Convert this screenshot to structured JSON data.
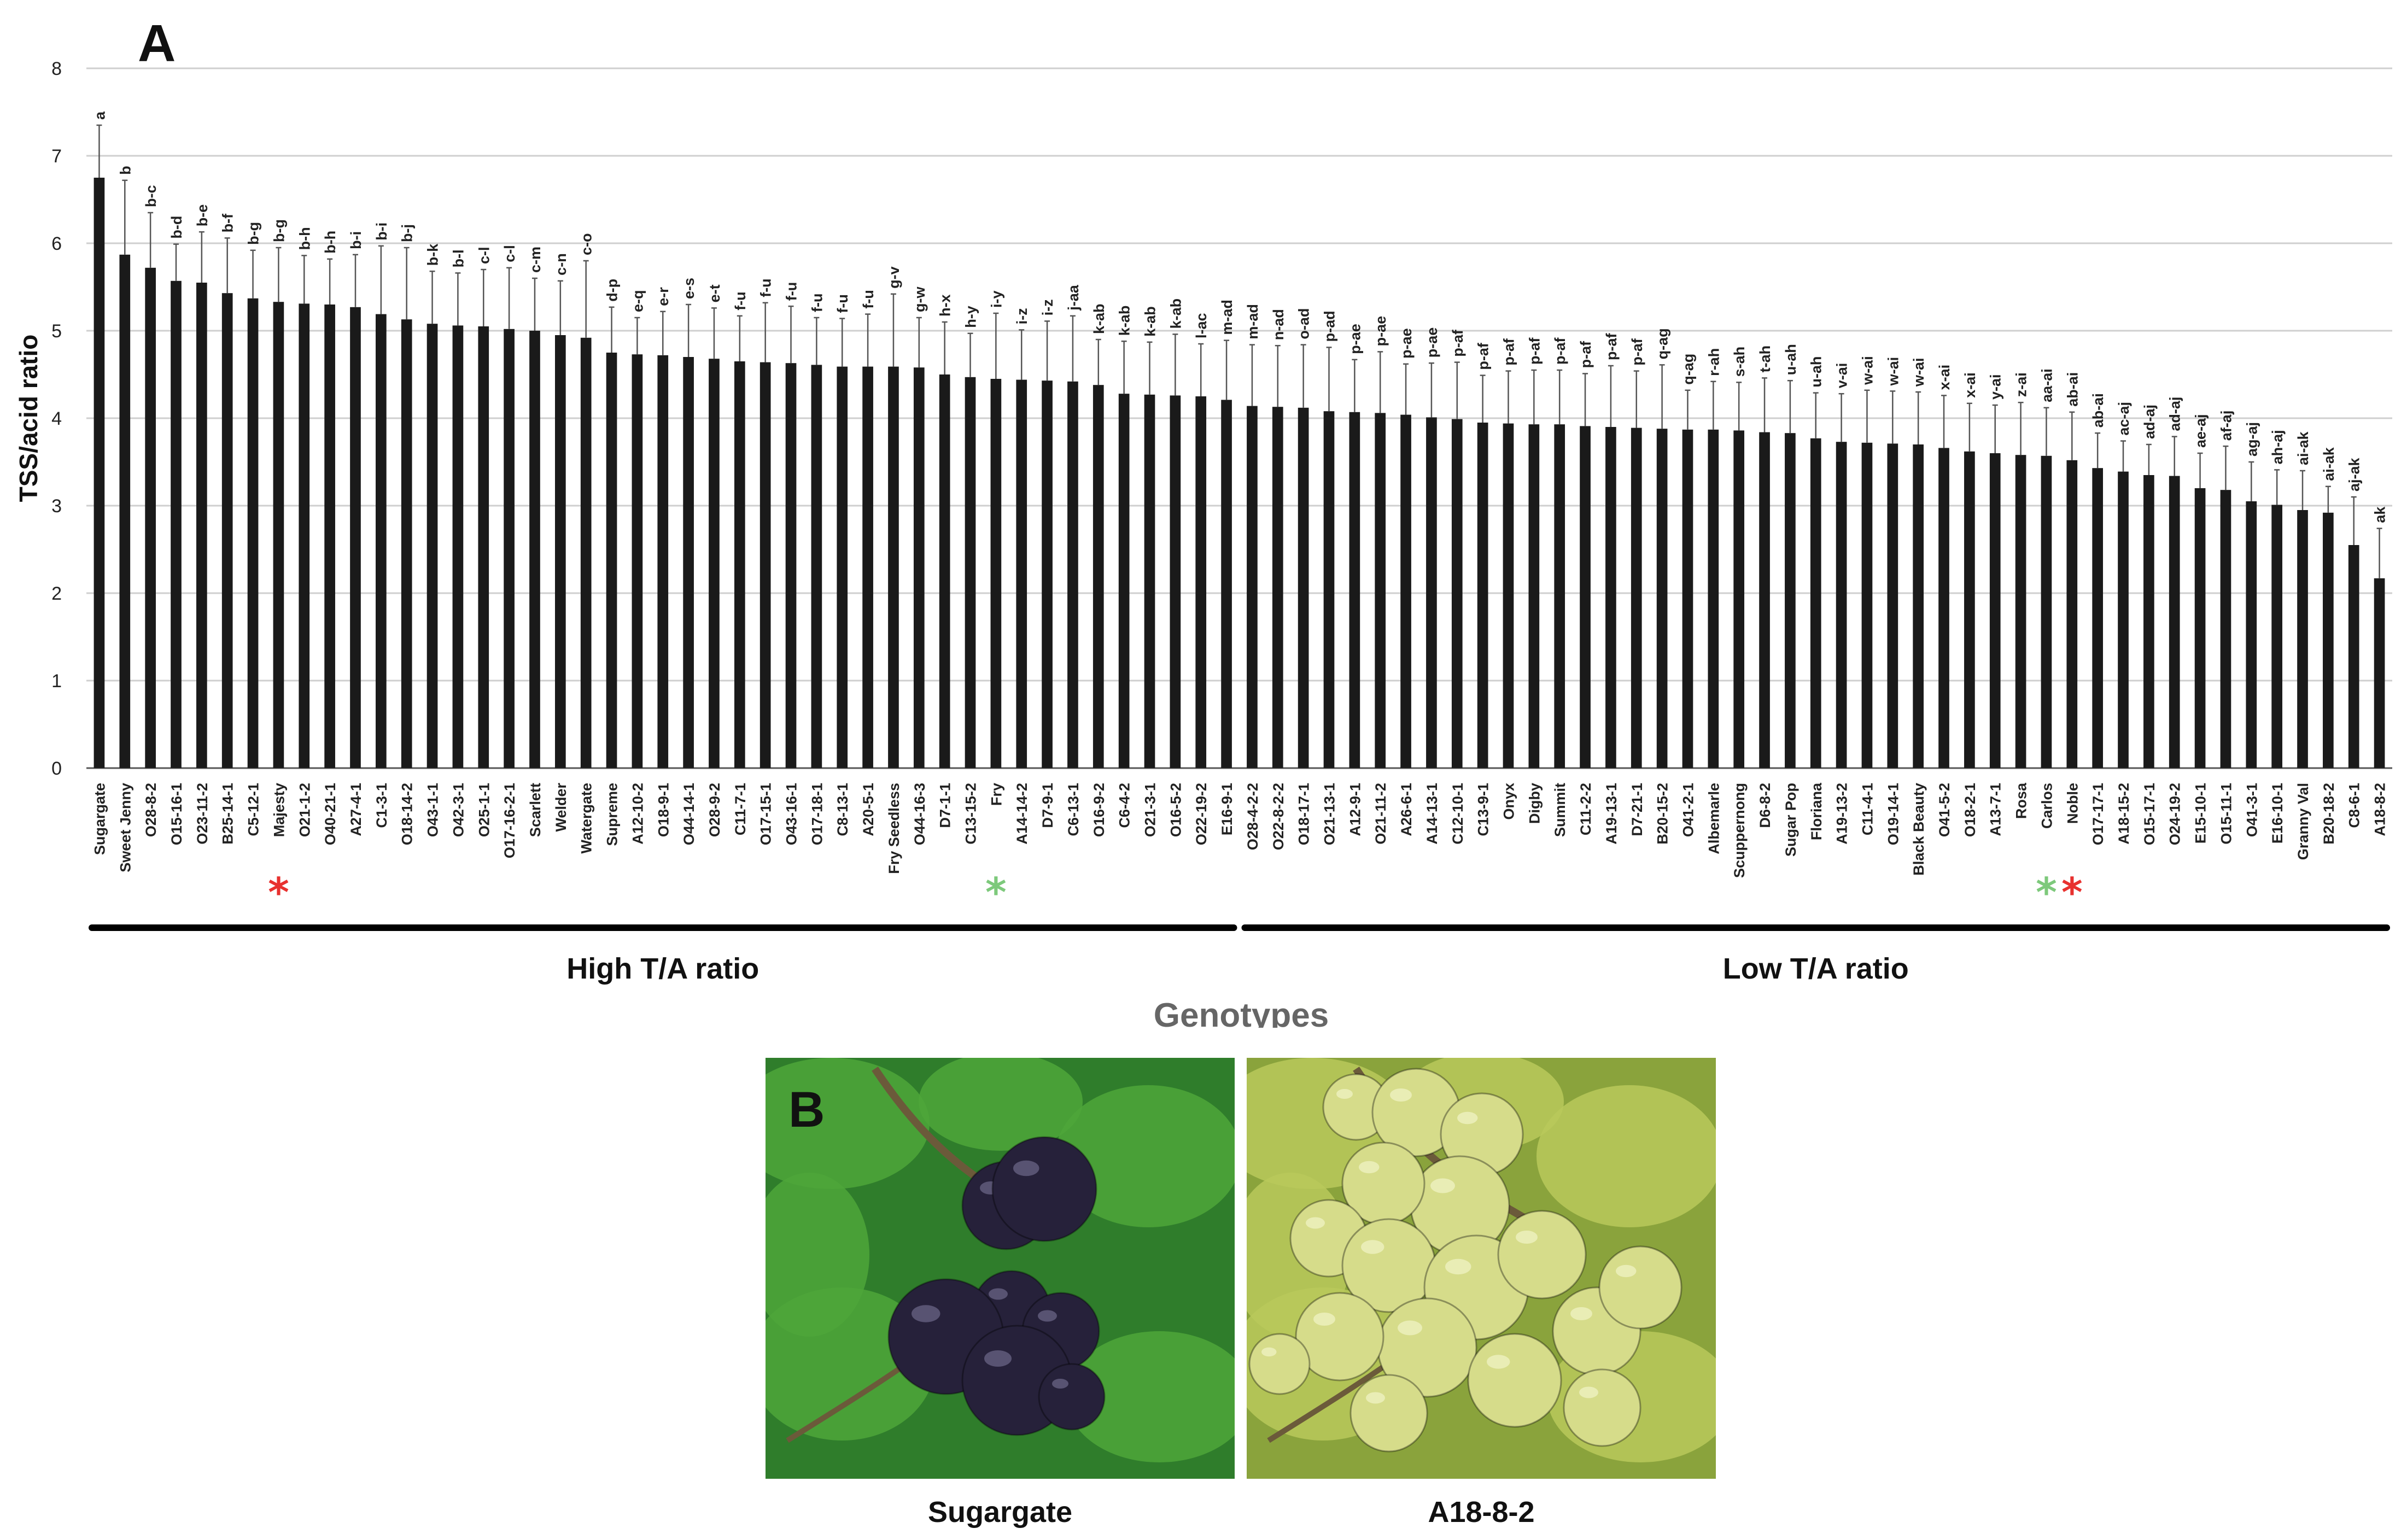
{
  "panel_a_label": "A",
  "panel_b_label": "B",
  "chart_data": {
    "type": "bar",
    "ylabel": "TSS/acid ratio",
    "xlabel": "Genotypes",
    "ylim": [
      0,
      8
    ],
    "yticks": [
      0,
      1,
      2,
      3,
      4,
      5,
      6,
      7,
      8
    ],
    "grid": true,
    "categories": [
      "Sugargate",
      "Sweet Jenny",
      "O28-8-2",
      "O15-16-1",
      "O23-11-2",
      "B25-14-1",
      "C5-12-1",
      "Majesty",
      "O21-1-2",
      "O40-21-1",
      "A27-4-1",
      "C1-3-1",
      "O18-14-2",
      "O43-1-1",
      "O42-3-1",
      "O25-1-1",
      "O17-16-2-1",
      "Scarlett",
      "Welder",
      "Watergate",
      "Supreme",
      "A12-10-2",
      "O18-9-1",
      "O44-14-1",
      "O28-9-2",
      "C11-7-1",
      "O17-15-1",
      "O43-16-1",
      "O17-18-1",
      "C8-13-1",
      "A20-5-1",
      "Fry Seedless",
      "O44-16-3",
      "D7-1-1",
      "C13-15-2",
      "Fry",
      "A14-14-2",
      "D7-9-1",
      "C6-13-1",
      "O16-9-2",
      "C6-4-2",
      "O21-3-1",
      "O16-5-2",
      "O22-19-2",
      "E16-9-1",
      "O28-4-2-2",
      "O22-8-2-2",
      "O18-17-1",
      "O21-13-1",
      "A12-9-1",
      "O21-11-2",
      "A26-6-1",
      "A14-13-1",
      "C12-10-1",
      "C13-9-1",
      "Onyx",
      "Digby",
      "Summit",
      "C11-2-2",
      "A19-13-1",
      "D7-21-1",
      "B20-15-2",
      "O41-2-1",
      "Albemarle",
      "Scuppernong",
      "D6-8-2",
      "Sugar Pop",
      "Floriana",
      "A19-13-2",
      "C11-4-1",
      "O19-14-1",
      "Black Beauty",
      "O41-5-2",
      "O18-2-1",
      "A13-7-1",
      "Rosa",
      "Carlos",
      "Noble",
      "O17-17-1",
      "A18-15-2",
      "O15-17-1",
      "O24-19-2",
      "E15-10-1",
      "O15-11-1",
      "O41-3-1",
      "E16-10-1",
      "Granny Val",
      "B20-18-2",
      "C8-6-1",
      "A18-8-2"
    ],
    "values": [
      6.75,
      5.87,
      5.72,
      5.57,
      5.55,
      5.43,
      5.37,
      5.33,
      5.31,
      5.3,
      5.27,
      5.19,
      5.13,
      5.08,
      5.06,
      5.05,
      5.02,
      5.0,
      4.95,
      4.92,
      4.75,
      4.73,
      4.72,
      4.7,
      4.68,
      4.65,
      4.64,
      4.63,
      4.61,
      4.59,
      4.59,
      4.59,
      4.58,
      4.5,
      4.47,
      4.45,
      4.44,
      4.43,
      4.42,
      4.38,
      4.28,
      4.27,
      4.26,
      4.25,
      4.21,
      4.14,
      4.13,
      4.12,
      4.08,
      4.07,
      4.06,
      4.04,
      4.01,
      3.99,
      3.95,
      3.94,
      3.93,
      3.93,
      3.91,
      3.9,
      3.89,
      3.88,
      3.87,
      3.87,
      3.86,
      3.84,
      3.83,
      3.77,
      3.73,
      3.72,
      3.71,
      3.7,
      3.66,
      3.62,
      3.6,
      3.58,
      3.57,
      3.52,
      3.43,
      3.39,
      3.35,
      3.34,
      3.2,
      3.18,
      3.05,
      3.01,
      2.95,
      2.92,
      2.55,
      2.17
    ],
    "errors": [
      0.6,
      0.85,
      0.63,
      0.42,
      0.58,
      0.63,
      0.55,
      0.62,
      0.55,
      0.52,
      0.6,
      0.78,
      0.82,
      0.6,
      0.6,
      0.65,
      0.7,
      0.6,
      0.62,
      0.88,
      0.52,
      0.42,
      0.5,
      0.6,
      0.58,
      0.52,
      0.68,
      0.65,
      0.54,
      0.55,
      0.6,
      0.83,
      0.57,
      0.6,
      0.5,
      0.75,
      0.57,
      0.68,
      0.75,
      0.52,
      0.6,
      0.6,
      0.7,
      0.6,
      0.68,
      0.7,
      0.7,
      0.72,
      0.73,
      0.6,
      0.7,
      0.58,
      0.62,
      0.65,
      0.54,
      0.6,
      0.62,
      0.62,
      0.6,
      0.7,
      0.65,
      0.73,
      0.45,
      0.55,
      0.55,
      0.62,
      0.6,
      0.52,
      0.55,
      0.6,
      0.6,
      0.6,
      0.6,
      0.55,
      0.55,
      0.6,
      0.55,
      0.55,
      0.4,
      0.35,
      0.35,
      0.45,
      0.4,
      0.5,
      0.45,
      0.4,
      0.45,
      0.3,
      0.55,
      0.57
    ],
    "letters": [
      "a",
      "b",
      "b-c",
      "b-d",
      "b-e",
      "b-f",
      "b-g",
      "b-g",
      "b-h",
      "b-h",
      "b-i",
      "b-i",
      "b-j",
      "b-k",
      "b-l",
      "c-l",
      "c-l",
      "c-m",
      "c-n",
      "c-o",
      "d-p",
      "e-q",
      "e-r",
      "e-s",
      "e-t",
      "f-u",
      "f-u",
      "f-u",
      "f-u",
      "f-u",
      "f-u",
      "g-v",
      "g-w",
      "h-x",
      "h-y",
      "i-y",
      "i-z",
      "i-z",
      "j-aa",
      "k-ab",
      "k-ab",
      "k-ab",
      "k-ab",
      "l-ac",
      "m-ad",
      "m-ad",
      "n-ad",
      "o-ad",
      "p-ad",
      "p-ae",
      "p-ae",
      "p-ae",
      "p-ae",
      "p-af",
      "p-af",
      "p-af",
      "p-af",
      "p-af",
      "p-af",
      "p-af",
      "p-af",
      "q-ag",
      "q-ag",
      "r-ah",
      "s-ah",
      "t-ah",
      "u-ah",
      "u-ah",
      "v-ai",
      "w-ai",
      "w-ai",
      "w-ai",
      "x-ai",
      "x-ai",
      "y-ai",
      "z-ai",
      "aa-ai",
      "ab-ai",
      "ab-ai",
      "ac-aj",
      "ad-aj",
      "ad-aj",
      "ae-aj",
      "af-aj",
      "ag-aj",
      "ah-aj",
      "ai-ak",
      "ai-ak",
      "aj-ak",
      "ak"
    ],
    "groups": [
      {
        "label": "High T/A ratio",
        "from": 0,
        "to": 44
      },
      {
        "label": "Low T/A ratio",
        "from": 45,
        "to": 89
      }
    ],
    "markers": [
      {
        "index": 7,
        "color": "#e8312f"
      },
      {
        "index": 35,
        "color": "#7dc97b"
      },
      {
        "index": 76,
        "color": "#7dc97b"
      },
      {
        "index": 77,
        "color": "#e8312f"
      }
    ],
    "colors": {
      "bar": "#1a1a1a",
      "grid": "#cfcfcf",
      "xlabel": "#666666"
    }
  },
  "photos": [
    {
      "caption": "Sugargate",
      "colors": {
        "bg": "#2f7d2b",
        "leaf": "#4ea63a",
        "berry": "#26213a",
        "highlight": "#6d6a8a"
      }
    },
    {
      "caption": "A18-8-2",
      "colors": {
        "bg": "#8aa33c",
        "leaf": "#b9c95a",
        "berry": "#d6dc8a",
        "highlight": "#f1f3c7"
      }
    }
  ]
}
